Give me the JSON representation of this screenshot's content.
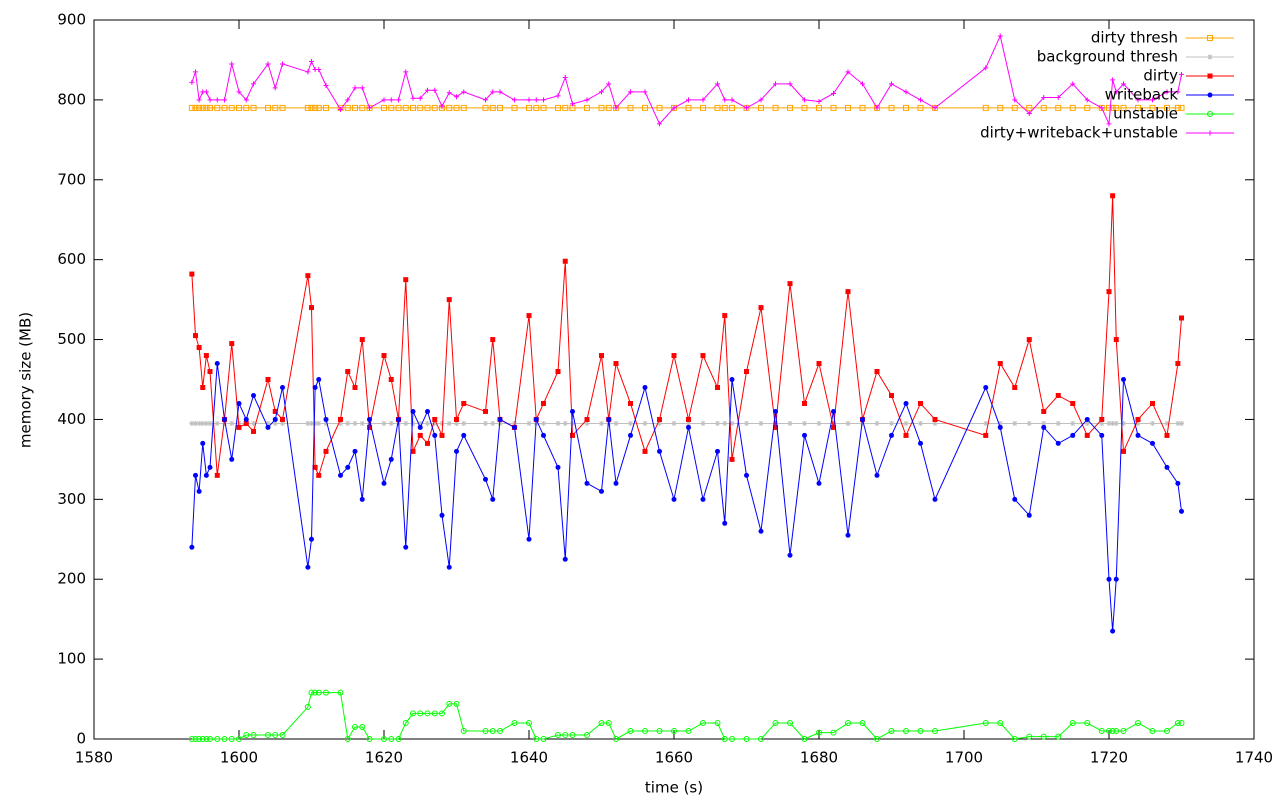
{
  "chart_data": {
    "type": "line",
    "xlabel": "time (s)",
    "ylabel": "memory size (MB)",
    "xlim": [
      1580,
      1740
    ],
    "xticks": [
      1580,
      1600,
      1620,
      1640,
      1660,
      1680,
      1700,
      1720,
      1740
    ],
    "ylim": [
      0,
      900
    ],
    "yticks": [
      0,
      100,
      200,
      300,
      400,
      500,
      600,
      700,
      800,
      900
    ],
    "legend": "top-right",
    "x": [
      1593.5,
      1594,
      1594.5,
      1595,
      1595.5,
      1596,
      1597,
      1598,
      1599,
      1600,
      1601,
      1602,
      1604,
      1605,
      1606,
      1609.5,
      1610,
      1610.5,
      1611,
      1612,
      1614,
      1615,
      1616,
      1617,
      1618,
      1620,
      1621,
      1622,
      1623,
      1624,
      1625,
      1626,
      1627,
      1628,
      1629,
      1630,
      1631,
      1634,
      1635,
      1636,
      1638,
      1640,
      1641,
      1642,
      1644,
      1645,
      1646,
      1648,
      1650,
      1651,
      1652,
      1654,
      1656,
      1658,
      1660,
      1662,
      1664,
      1666,
      1667,
      1668,
      1670,
      1672,
      1674,
      1676,
      1678,
      1680,
      1682,
      1684,
      1686,
      1688,
      1690,
      1692,
      1694,
      1696,
      1703,
      1705,
      1707,
      1709,
      1711,
      1713,
      1715,
      1717,
      1719,
      1720,
      1720.5,
      1721,
      1722,
      1724,
      1726,
      1728,
      1729.5,
      1730
    ],
    "series": [
      {
        "name": "dirty thresh",
        "color": "#ffa500",
        "marker": "open-square",
        "values": [
          790,
          790,
          790,
          790,
          790,
          790,
          790,
          790,
          790,
          790,
          790,
          790,
          790,
          790,
          790,
          790,
          790,
          790,
          790,
          790,
          790,
          790,
          790,
          790,
          790,
          790,
          790,
          790,
          790,
          790,
          790,
          790,
          790,
          790,
          790,
          790,
          790,
          790,
          790,
          790,
          790,
          790,
          790,
          790,
          790,
          790,
          790,
          790,
          790,
          790,
          790,
          790,
          790,
          790,
          790,
          790,
          790,
          790,
          790,
          790,
          790,
          790,
          790,
          790,
          790,
          790,
          790,
          790,
          790,
          790,
          790,
          790,
          790,
          790,
          790,
          790,
          790,
          790,
          790,
          790,
          790,
          790,
          790,
          790,
          790,
          790,
          790,
          790,
          790,
          790,
          790,
          790
        ]
      },
      {
        "name": "background thresh",
        "color": "#c0c0c0",
        "marker": "asterisk",
        "values": [
          395,
          395,
          395,
          395,
          395,
          395,
          395,
          395,
          395,
          395,
          395,
          395,
          395,
          395,
          395,
          395,
          395,
          395,
          395,
          395,
          395,
          395,
          395,
          395,
          395,
          395,
          395,
          395,
          395,
          395,
          395,
          395,
          395,
          395,
          395,
          395,
          395,
          395,
          395,
          395,
          395,
          395,
          395,
          395,
          395,
          395,
          395,
          395,
          395,
          395,
          395,
          395,
          395,
          395,
          395,
          395,
          395,
          395,
          395,
          395,
          395,
          395,
          395,
          395,
          395,
          395,
          395,
          395,
          395,
          395,
          395,
          395,
          395,
          395,
          395,
          395,
          395,
          395,
          395,
          395,
          395,
          395,
          395,
          395,
          395,
          395,
          395,
          395,
          395,
          395,
          395,
          395
        ]
      },
      {
        "name": "dirty",
        "color": "#ff0000",
        "marker": "square",
        "values": [
          582,
          505,
          490,
          440,
          480,
          460,
          330,
          400,
          495,
          390,
          395,
          385,
          450,
          410,
          400,
          580,
          540,
          340,
          330,
          360,
          400,
          460,
          440,
          500,
          390,
          480,
          450,
          400,
          575,
          360,
          380,
          370,
          400,
          380,
          550,
          400,
          420,
          410,
          500,
          400,
          390,
          530,
          400,
          420,
          460,
          598,
          380,
          400,
          480,
          400,
          470,
          420,
          360,
          400,
          480,
          400,
          480,
          440,
          530,
          350,
          460,
          540,
          390,
          570,
          420,
          470,
          390,
          560,
          400,
          460,
          430,
          380,
          420,
          400,
          380,
          470,
          440,
          500,
          410,
          430,
          420,
          380,
          400,
          560,
          680,
          500,
          360,
          400,
          420,
          380,
          470,
          527
        ]
      },
      {
        "name": "writeback",
        "color": "#0000ff",
        "marker": "circle",
        "values": [
          240,
          330,
          310,
          370,
          330,
          340,
          470,
          400,
          350,
          420,
          400,
          430,
          390,
          400,
          440,
          215,
          250,
          440,
          450,
          400,
          330,
          340,
          360,
          300,
          400,
          320,
          350,
          400,
          240,
          410,
          390,
          410,
          380,
          280,
          215,
          360,
          380,
          325,
          300,
          400,
          390,
          250,
          400,
          380,
          340,
          225,
          410,
          320,
          310,
          400,
          320,
          380,
          440,
          360,
          300,
          390,
          300,
          360,
          270,
          450,
          330,
          260,
          410,
          230,
          380,
          320,
          410,
          255,
          400,
          330,
          380,
          420,
          370,
          300,
          440,
          390,
          300,
          280,
          390,
          370,
          380,
          400,
          380,
          200,
          135,
          200,
          450,
          380,
          370,
          340,
          320,
          285
        ]
      },
      {
        "name": "unstable",
        "color": "#00ff00",
        "marker": "open-circle",
        "values": [
          0,
          0,
          0,
          0,
          0,
          0,
          0,
          0,
          0,
          0,
          5,
          5,
          5,
          5,
          5,
          40,
          58,
          58,
          58,
          58,
          58,
          0,
          15,
          15,
          0,
          0,
          0,
          0,
          20,
          32,
          32,
          32,
          32,
          32,
          44,
          44,
          10,
          10,
          10,
          10,
          20,
          20,
          0,
          0,
          5,
          5,
          5,
          5,
          20,
          20,
          0,
          10,
          10,
          10,
          10,
          10,
          20,
          20,
          0,
          0,
          0,
          0,
          20,
          20,
          0,
          8,
          8,
          20,
          20,
          0,
          10,
          10,
          10,
          10,
          20,
          20,
          0,
          3,
          3,
          3,
          20,
          20,
          10,
          10,
          10,
          10,
          10,
          20,
          10,
          10,
          20,
          20
        ]
      },
      {
        "name": "dirty+writeback+unstable",
        "color": "#ff00ff",
        "marker": "plus",
        "values": [
          822,
          835,
          800,
          810,
          810,
          800,
          800,
          800,
          845,
          810,
          800,
          820,
          845,
          815,
          845,
          835,
          848,
          838,
          838,
          818,
          788,
          800,
          815,
          815,
          790,
          800,
          800,
          800,
          835,
          802,
          802,
          812,
          812,
          792,
          809,
          804,
          810,
          800,
          810,
          810,
          800,
          800,
          800,
          800,
          805,
          828,
          795,
          800,
          810,
          820,
          790,
          810,
          810,
          770,
          790,
          800,
          800,
          820,
          800,
          800,
          790,
          800,
          820,
          820,
          800,
          798,
          808,
          835,
          820,
          790,
          820,
          810,
          800,
          790,
          840,
          880,
          800,
          783,
          803,
          803,
          820,
          800,
          790,
          770,
          825,
          810,
          820,
          800,
          800,
          810,
          810,
          832
        ]
      }
    ]
  }
}
